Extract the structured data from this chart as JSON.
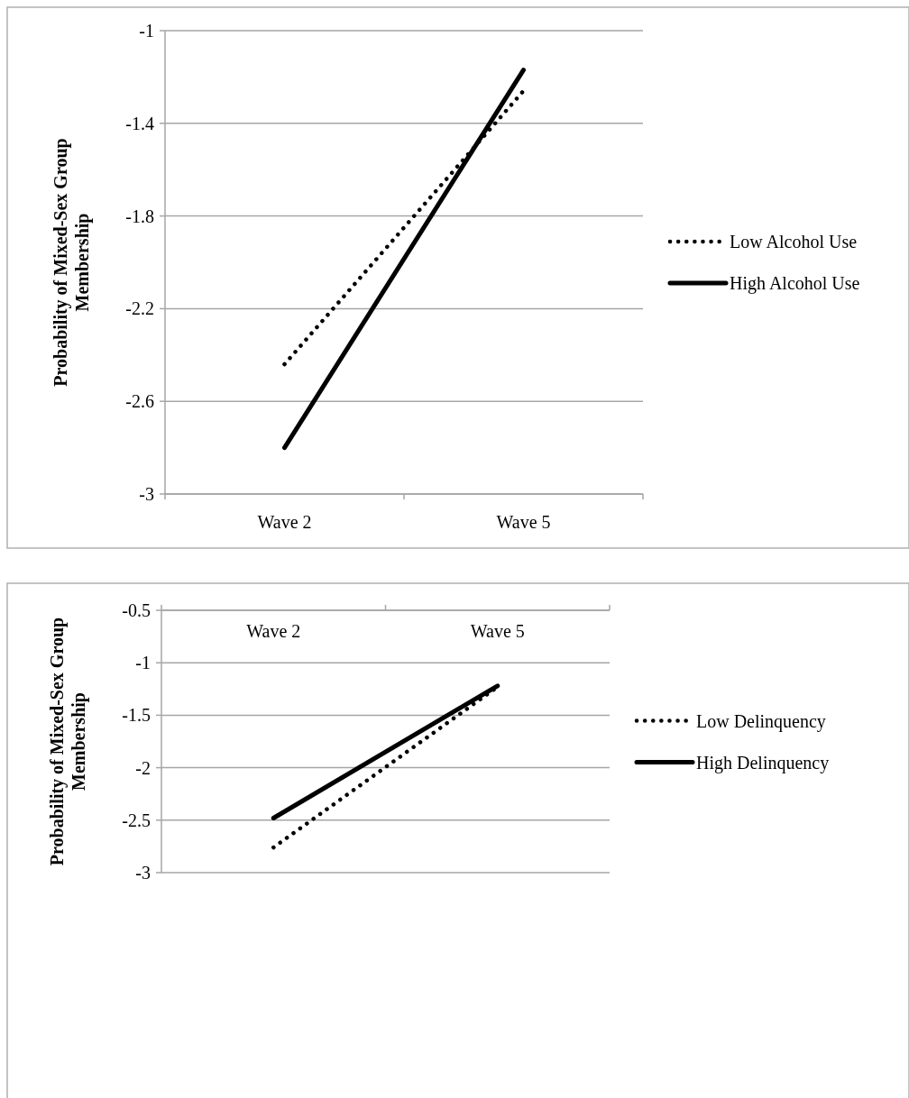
{
  "chart_data": [
    {
      "type": "line",
      "ylabel": "Probability of Mixed-Sex Group Membership",
      "categories": [
        "Wave 2",
        "Wave 5"
      ],
      "ylim": [
        -3,
        -1
      ],
      "yticks": [
        -3,
        -2.6,
        -2.2,
        -1.8,
        -1.4,
        -1
      ],
      "grid": "y",
      "legend": "right",
      "series": [
        {
          "name": "Low Alcohol Use",
          "color": "#000000",
          "line_style": "dotted",
          "values": [
            -2.44,
            -1.26
          ]
        },
        {
          "name": "High Alcohol Use",
          "color": "#000000",
          "line_style": "solid",
          "values": [
            -2.8,
            -1.17
          ]
        }
      ]
    },
    {
      "type": "line",
      "ylabel": "Probability of Mixed-Sex Group Membership",
      "categories": [
        "Wave 2",
        "Wave 5"
      ],
      "ylim": [
        -3,
        -0.5
      ],
      "yticks": [
        -3,
        -2.5,
        -2,
        -1.5,
        -1,
        -0.5
      ],
      "grid": "y",
      "legend": "right",
      "series": [
        {
          "name": "Low Delinquency",
          "color": "#000000",
          "line_style": "dotted",
          "values": [
            -2.76,
            -1.23
          ]
        },
        {
          "name": "High Delinquency",
          "color": "#000000",
          "line_style": "solid",
          "values": [
            -2.48,
            -1.22
          ]
        }
      ]
    }
  ]
}
